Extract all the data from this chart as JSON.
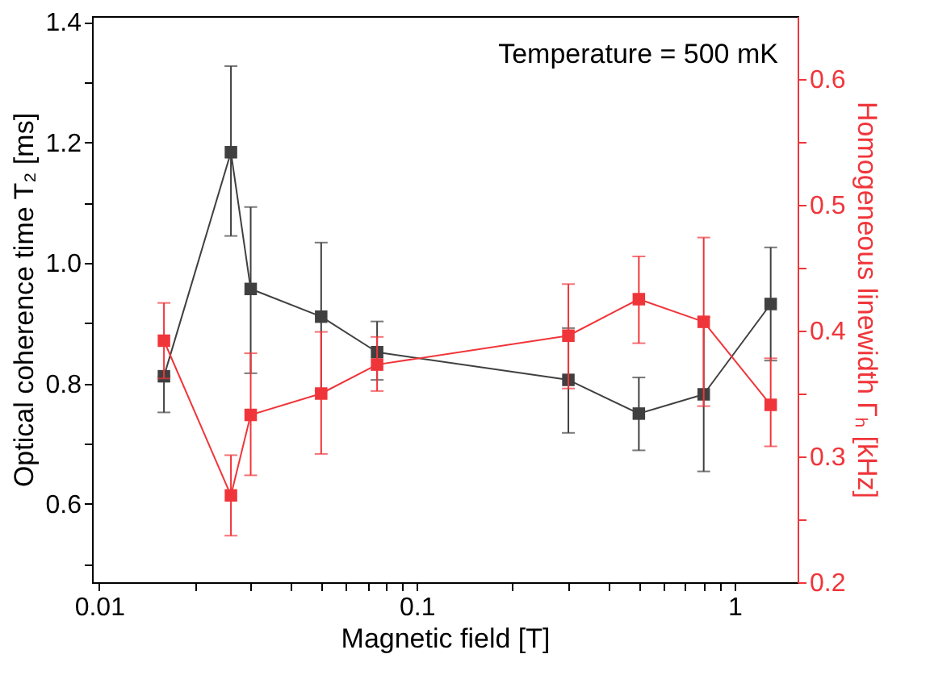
{
  "chart_data": {
    "type": "line",
    "xlabel": "Magnetic field [T]",
    "ylabel": "Optical coherence time T₂ [ms]",
    "y2label": "Homogeneous linewidth Γₕ [kHz]",
    "annotations": [
      "Temperature = 500 mK"
    ],
    "log": "x",
    "grid": false,
    "marker": "square",
    "line_style": "solid",
    "xlim": [
      0.0095,
      1.58
    ],
    "xticks": [
      {
        "value": 0.01,
        "label": "0.01"
      },
      {
        "value": 0.02,
        "label": null
      },
      {
        "value": 0.03,
        "label": null
      },
      {
        "value": 0.04,
        "label": null
      },
      {
        "value": 0.05,
        "label": null
      },
      {
        "value": 0.06,
        "label": null
      },
      {
        "value": 0.07,
        "label": null
      },
      {
        "value": 0.08,
        "label": null
      },
      {
        "value": 0.09,
        "label": null
      },
      {
        "value": 0.1,
        "label": "0.1"
      },
      {
        "value": 0.2,
        "label": null
      },
      {
        "value": 0.3,
        "label": null
      },
      {
        "value": 0.4,
        "label": null
      },
      {
        "value": 0.5,
        "label": null
      },
      {
        "value": 0.6,
        "label": null
      },
      {
        "value": 0.7,
        "label": null
      },
      {
        "value": 0.8,
        "label": null
      },
      {
        "value": 0.9,
        "label": null
      },
      {
        "value": 1,
        "label": "1"
      }
    ],
    "ylim": [
      0.47,
      1.41
    ],
    "yticks": [
      {
        "value": 0.5,
        "label": null
      },
      0.6,
      {
        "value": 0.7,
        "label": null
      },
      0.8,
      {
        "value": 0.9,
        "label": null
      },
      {
        "value": 1.0,
        "label": "1.0"
      },
      {
        "value": 1.1,
        "label": null
      },
      1.2,
      {
        "value": 1.3,
        "label": null
      },
      1.4
    ],
    "y2lim": [
      0.2,
      0.65
    ],
    "y2ticks": [
      0.2,
      {
        "value": 0.25,
        "label": null
      },
      0.3,
      {
        "value": 0.35,
        "label": null
      },
      0.4,
      {
        "value": 0.45,
        "label": null
      },
      0.5,
      {
        "value": 0.55,
        "label": null
      },
      0.6
    ],
    "x": [
      0.016,
      0.026,
      0.03,
      0.05,
      0.075,
      0.3,
      0.5,
      0.8,
      1.3
    ],
    "series": [
      {
        "color": "#404040",
        "values": [
          0.812,
          1.184,
          0.957,
          0.911,
          0.852,
          0.806,
          0.75,
          0.782,
          0.932
        ],
        "errors": [
          [
            0.752,
            0.812
          ],
          [
            1.045,
            1.327
          ],
          [
            0.817,
            1.093
          ],
          [
            0.788,
            1.034
          ],
          [
            0.806,
            0.903
          ],
          [
            0.718,
            0.892
          ],
          [
            0.689,
            0.81
          ],
          [
            0.654,
            0.91
          ],
          [
            0.838,
            1.026
          ]
        ]
      },
      {
        "color": "#f0353a",
        "axis": "y2",
        "values": [
          0.392,
          0.269,
          0.333,
          0.35,
          0.373,
          0.396,
          0.425,
          0.407,
          0.341
        ],
        "errors": [
          [
            0.362,
            0.422
          ],
          [
            0.237,
            0.301
          ],
          [
            0.285,
            0.382
          ],
          [
            0.302,
            0.399
          ],
          [
            0.352,
            0.395
          ],
          [
            0.354,
            0.437
          ],
          [
            0.39,
            0.459
          ],
          [
            0.34,
            0.474
          ],
          [
            0.308,
            0.378
          ]
        ]
      }
    ]
  }
}
